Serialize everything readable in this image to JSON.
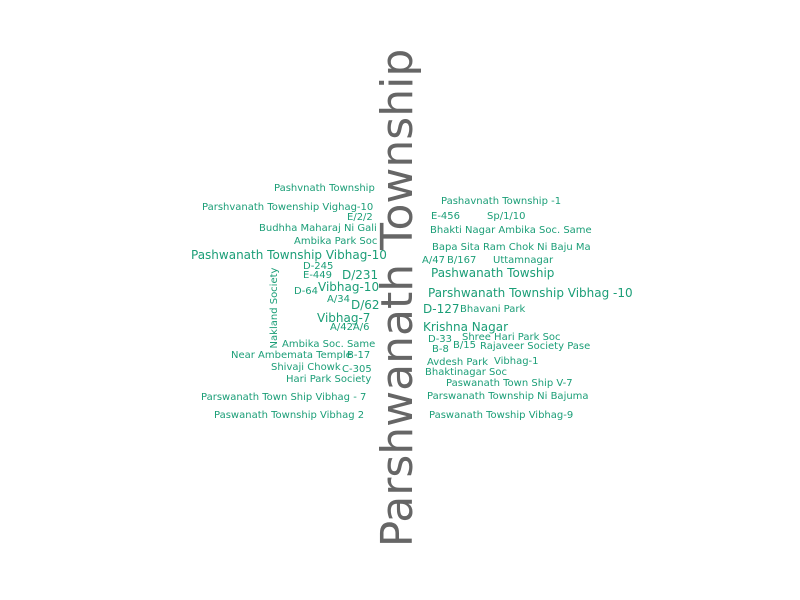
{
  "colors": {
    "primary": "#666666",
    "secondary": "#1b9e77"
  },
  "main_word": "Parshwanath Township",
  "words": [
    {
      "text": "Pashvnath Township",
      "size": 10
    },
    {
      "text": "Pashavnath Township -1",
      "size": 10
    },
    {
      "text": "Parshvanath Towenship Vighag-10",
      "size": 10
    },
    {
      "text": "E/2/2",
      "size": 10
    },
    {
      "text": "E-456",
      "size": 10
    },
    {
      "text": "Sp/1/10",
      "size": 10
    },
    {
      "text": "Budhha Maharaj Ni Gali",
      "size": 10
    },
    {
      "text": "Bhakti Nagar Ambika Soc. Same",
      "size": 10
    },
    {
      "text": "Ambika Park Soc",
      "size": 10
    },
    {
      "text": "Bapa Sita Ram Chok Ni Baju Ma",
      "size": 10
    },
    {
      "text": "Pashwanath Township Vibhag-10",
      "size": 12
    },
    {
      "text": "A/47",
      "size": 10
    },
    {
      "text": "B/167",
      "size": 10
    },
    {
      "text": "Uttamnagar",
      "size": 10
    },
    {
      "text": "D-245",
      "size": 10
    },
    {
      "text": "D/231",
      "size": 12
    },
    {
      "text": "Pashwanath Towship",
      "size": 12
    },
    {
      "text": "E-449",
      "size": 10
    },
    {
      "text": "Vibhag-10",
      "size": 12
    },
    {
      "text": "D-64",
      "size": 10
    },
    {
      "text": "Parshwanath Township Vibhag -10",
      "size": 12
    },
    {
      "text": "A/34",
      "size": 10
    },
    {
      "text": "D/62",
      "size": 12
    },
    {
      "text": "D-127",
      "size": 12
    },
    {
      "text": "Bhavani Park",
      "size": 10
    },
    {
      "text": "Vibhag-7",
      "size": 12
    },
    {
      "text": "A/42A/6",
      "size": 10
    },
    {
      "text": "Krishna Nagar",
      "size": 12
    },
    {
      "text": "Nakland Society",
      "size": 10
    },
    {
      "text": "D-33",
      "size": 10
    },
    {
      "text": "Shree Hari Park Soc",
      "size": 10
    },
    {
      "text": "Ambika Soc. Same",
      "size": 10
    },
    {
      "text": "B-8",
      "size": 10
    },
    {
      "text": "B/15",
      "size": 10
    },
    {
      "text": "Rajaveer Society Pase",
      "size": 10
    },
    {
      "text": "Near Ambemata Temple",
      "size": 10
    },
    {
      "text": "B-17",
      "size": 10
    },
    {
      "text": "Avdesh Park",
      "size": 10
    },
    {
      "text": "Vibhag-1",
      "size": 10
    },
    {
      "text": "Shivaji Chowk",
      "size": 10
    },
    {
      "text": "C-305",
      "size": 10
    },
    {
      "text": "Bhaktinagar Soc",
      "size": 10
    },
    {
      "text": "Hari Park Society",
      "size": 10
    },
    {
      "text": "Paswanath Town Ship V-7",
      "size": 10
    },
    {
      "text": "Parswanath Town Ship Vibhag - 7",
      "size": 10
    },
    {
      "text": "Parswanath Township Ni Bajuma",
      "size": 10
    },
    {
      "text": "Paswanath Township Vibhag 2",
      "size": 10
    },
    {
      "text": "Paswanath Towship Vibhag-9",
      "size": 10
    }
  ]
}
